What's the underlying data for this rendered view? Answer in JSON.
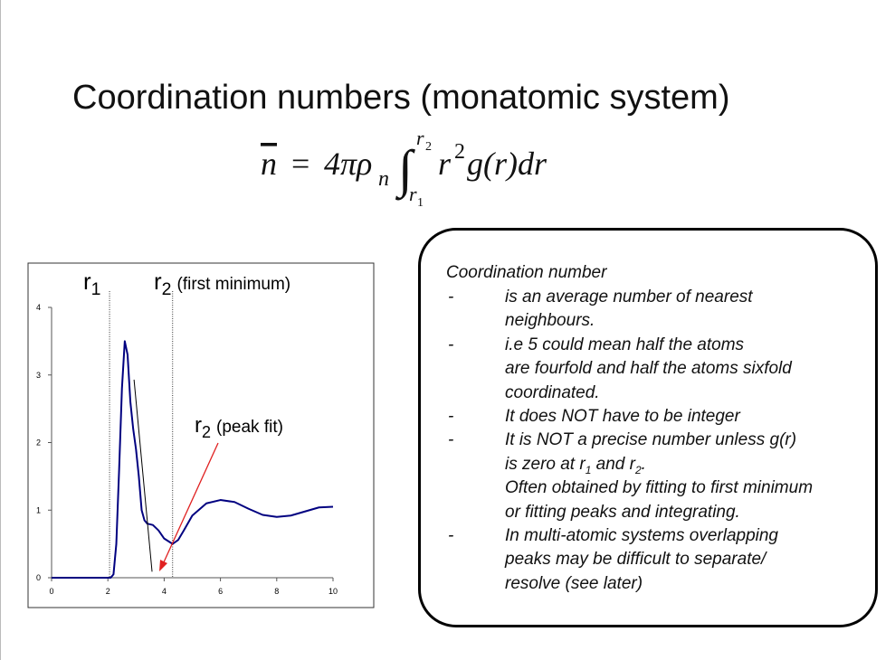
{
  "slide": {
    "title": "Coordination numbers (monatomic system)",
    "formula": {
      "lhs": "n",
      "eq": "=",
      "coef": "4πρ",
      "coef_sub": "n",
      "integral": "∫",
      "upper": "r",
      "upper_sub": "2",
      "lower": "r",
      "lower_sub": "1",
      "integrand": "r",
      "power": "2",
      "rest": "g(r)dr"
    }
  },
  "chart_data": {
    "type": "line",
    "x": [
      0,
      2.1,
      2.2,
      2.3,
      2.4,
      2.5,
      2.6,
      2.7,
      2.8,
      2.9,
      3.0,
      3.1,
      3.2,
      3.3,
      3.4,
      3.6,
      3.8,
      4.0,
      4.3,
      4.5,
      4.7,
      5.0,
      5.5,
      6.0,
      6.5,
      7.0,
      7.5,
      8.0,
      8.5,
      9.0,
      9.5,
      10
    ],
    "series": [
      {
        "color": "#000080",
        "values": [
          0,
          0,
          0.05,
          0.5,
          1.6,
          2.8,
          3.5,
          3.3,
          2.6,
          2.2,
          1.9,
          1.5,
          1.0,
          0.85,
          0.8,
          0.78,
          0.7,
          0.58,
          0.5,
          0.56,
          0.7,
          0.92,
          1.1,
          1.15,
          1.12,
          1.02,
          0.93,
          0.9,
          0.92,
          0.98,
          1.04,
          1.05
        ]
      }
    ],
    "xlim": [
      0,
      10
    ],
    "ylim": [
      0,
      4
    ],
    "xticks": [
      0,
      2,
      4,
      6,
      8,
      10
    ],
    "yticks": [
      0,
      1,
      2,
      3,
      4
    ],
    "vlines": [
      2.06,
      4.3
    ],
    "fit_line": {
      "x": [
        2.93,
        3.57
      ],
      "values": [
        2.93,
        0.09
      ]
    },
    "annotations": [
      {
        "text": "r",
        "sub": "1"
      },
      {
        "text": "r",
        "sub": "2",
        "note": "(first minimum)"
      },
      {
        "text": "r",
        "sub": "2",
        "note": "(peak fit)"
      }
    ]
  },
  "text_box": {
    "heading": "Coordination number",
    "bullet": "-",
    "items": [
      [
        "is an average number of nearest",
        "neighbours."
      ],
      [
        "i.e 5 could mean half the atoms",
        "are fourfold and half the atoms sixfold",
        "coordinated."
      ],
      [
        "It does NOT have to be integer"
      ],
      [
        "It is NOT a precise number unless g(r)",
        [
          {
            "text": "is zero at r"
          },
          {
            "sub": "1"
          },
          {
            "text": " and r"
          },
          {
            "sub": "2"
          },
          {
            "text": "."
          }
        ],
        "Often obtained by fitting to first minimum",
        "or fitting peaks and integrating."
      ],
      [
        "In multi-atomic systems overlapping",
        "peaks may be difficult to separate/",
        "resolve (see later)"
      ]
    ]
  }
}
